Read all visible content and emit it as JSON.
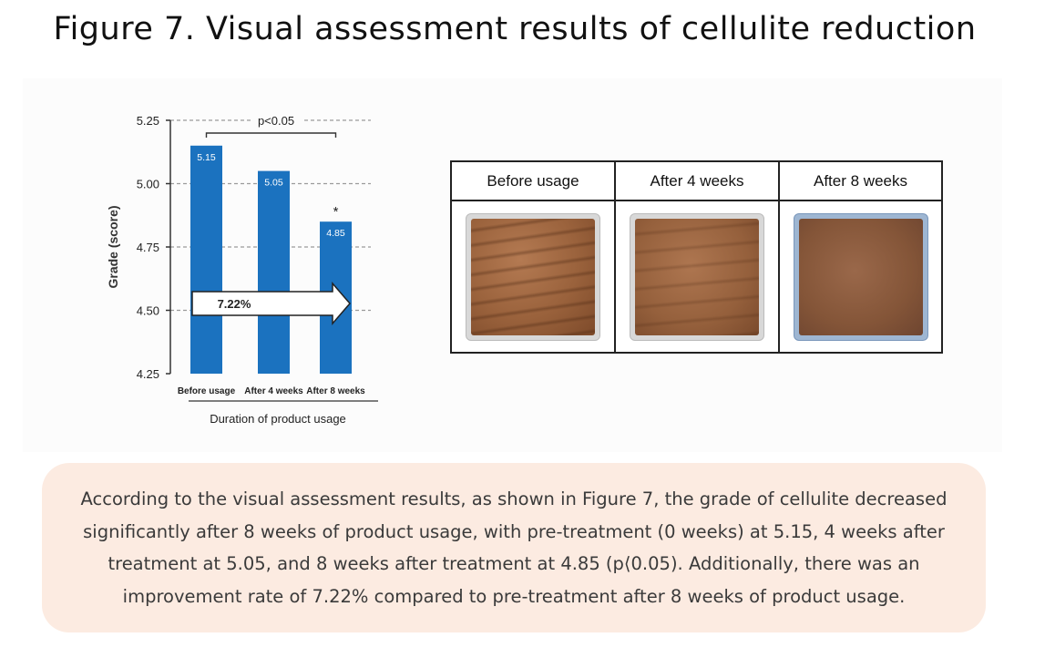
{
  "figure_title": "Figure 7. Visual assessment results of cellulite reduction",
  "chart_data": {
    "type": "bar",
    "title": "",
    "xlabel": "Duration of product usage",
    "ylabel": "Grade (score)",
    "ylim": [
      4.25,
      5.25
    ],
    "y_ticks": [
      4.25,
      4.5,
      4.75,
      5.0,
      5.25
    ],
    "y_tick_labels": [
      "4.25",
      "4.50",
      "4.75",
      "5.00",
      "5.25"
    ],
    "categories": [
      "Before usage",
      "After 4 weeks",
      "After 8 weeks"
    ],
    "values": [
      5.15,
      5.05,
      4.85
    ],
    "data_labels": [
      "5.15",
      "5.05",
      "4.85"
    ],
    "grid": "horizontal dashed",
    "bar_color": "#1b72bf",
    "significance": {
      "label": "p<0.05",
      "from": "Before usage",
      "to": "After 8 weeks",
      "marker": "*",
      "marker_on": "After 8 weeks"
    },
    "arrow_label": "7.22%"
  },
  "photo_table": {
    "headers": [
      "Before usage",
      "After 4 weeks",
      "After 8 weeks"
    ],
    "images": [
      "skin-photo-before",
      "skin-photo-4-weeks",
      "skin-photo-8-weeks"
    ]
  },
  "summary": {
    "text": "According to the visual assessment results, as shown in Figure 7, the grade of cellulite decreased significantly after 8 weeks of product usage, with pre-treatment (0 weeks) at 5.15, 4 weeks after treatment at 5.05, and 8 weeks after treatment at 4.85 (p⟨0.05). Additionally, there was an improvement rate of 7.22% compared to pre-treatment after 8 weeks of product usage."
  }
}
